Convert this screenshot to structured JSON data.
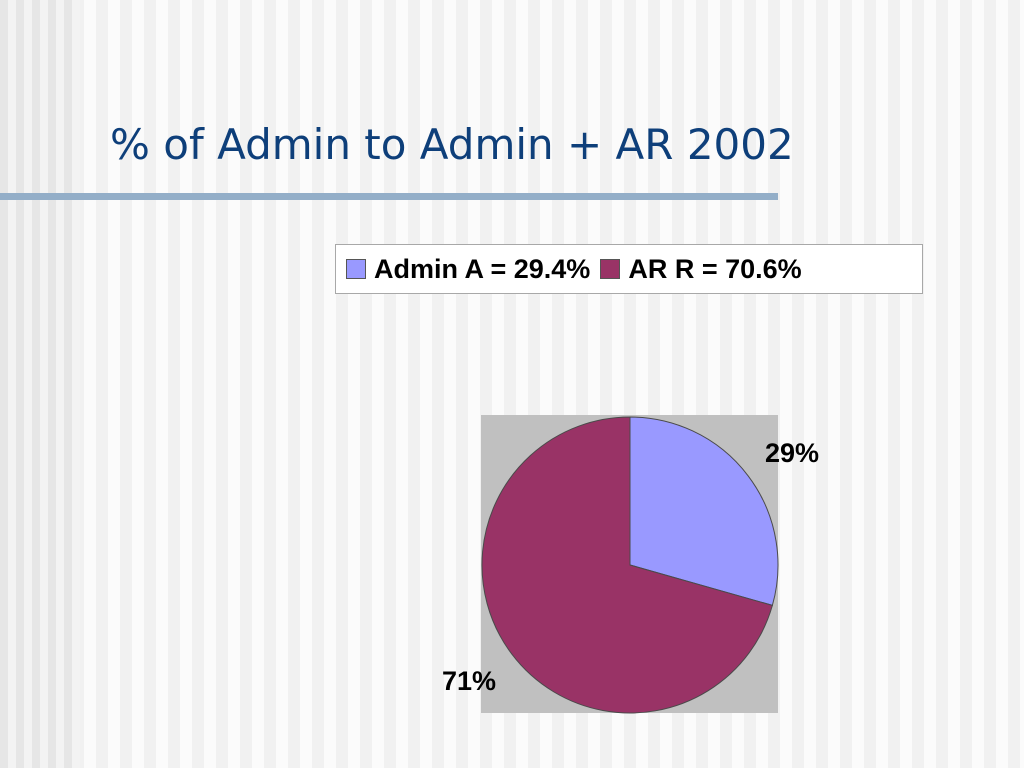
{
  "slide": {
    "title": "% of Admin to Admin + AR 2002"
  },
  "chart_data": {
    "type": "pie",
    "start_angle_deg": 0,
    "direction": "clockwise",
    "plot_background": "#c0c0c0",
    "legend_position": "top",
    "series": [
      {
        "legend": "Admin A = 29.4%",
        "value": 29.4,
        "label": "29%",
        "color": "#9999ff"
      },
      {
        "legend": "AR R = 70.6%",
        "value": 70.6,
        "label": "71%",
        "color": "#993366"
      }
    ]
  }
}
